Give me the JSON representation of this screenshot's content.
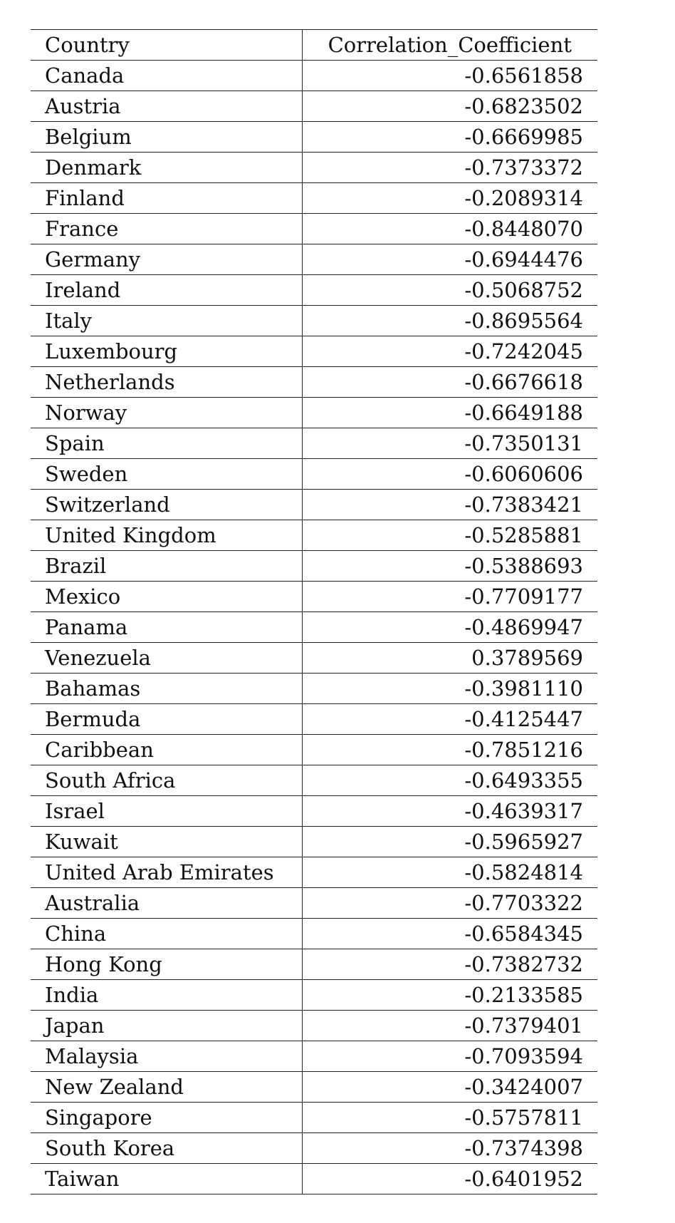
{
  "table": {
    "headers": {
      "country": "Country",
      "value": "Correlation_Coefficient"
    },
    "rows": [
      {
        "country": "Canada",
        "value": "-0.6561858"
      },
      {
        "country": "Austria",
        "value": "-0.6823502"
      },
      {
        "country": "Belgium",
        "value": "-0.6669985"
      },
      {
        "country": "Denmark",
        "value": "-0.7373372"
      },
      {
        "country": "Finland",
        "value": "-0.2089314"
      },
      {
        "country": "France",
        "value": "-0.8448070"
      },
      {
        "country": "Germany",
        "value": "-0.6944476"
      },
      {
        "country": "Ireland",
        "value": "-0.5068752"
      },
      {
        "country": "Italy",
        "value": "-0.8695564"
      },
      {
        "country": "Luxembourg",
        "value": "-0.7242045"
      },
      {
        "country": "Netherlands",
        "value": "-0.6676618"
      },
      {
        "country": "Norway",
        "value": "-0.6649188"
      },
      {
        "country": "Spain",
        "value": "-0.7350131"
      },
      {
        "country": "Sweden",
        "value": "-0.6060606"
      },
      {
        "country": "Switzerland",
        "value": "-0.7383421"
      },
      {
        "country": "United Kingdom",
        "value": "-0.5285881"
      },
      {
        "country": "Brazil",
        "value": "-0.5388693"
      },
      {
        "country": "Mexico",
        "value": "-0.7709177"
      },
      {
        "country": "Panama",
        "value": "-0.4869947"
      },
      {
        "country": "Venezuela",
        "value": "0.3789569"
      },
      {
        "country": "Bahamas",
        "value": "-0.3981110"
      },
      {
        "country": "Bermuda",
        "value": "-0.4125447"
      },
      {
        "country": "Caribbean",
        "value": "-0.7851216"
      },
      {
        "country": "South Africa",
        "value": "-0.6493355"
      },
      {
        "country": "Israel",
        "value": "-0.4639317"
      },
      {
        "country": "Kuwait",
        "value": "-0.5965927"
      },
      {
        "country": "United Arab Emirates",
        "value": "-0.5824814"
      },
      {
        "country": "Australia",
        "value": "-0.7703322"
      },
      {
        "country": "China",
        "value": "-0.6584345"
      },
      {
        "country": "Hong Kong",
        "value": "-0.7382732"
      },
      {
        "country": "India",
        "value": "-0.2133585"
      },
      {
        "country": "Japan",
        "value": "-0.7379401"
      },
      {
        "country": "Malaysia",
        "value": "-0.7093594"
      },
      {
        "country": "New Zealand",
        "value": "-0.3424007"
      },
      {
        "country": "Singapore",
        "value": "-0.5757811"
      },
      {
        "country": "South Korea",
        "value": "-0.7374398"
      },
      {
        "country": "Taiwan",
        "value": "-0.6401952"
      }
    ]
  }
}
